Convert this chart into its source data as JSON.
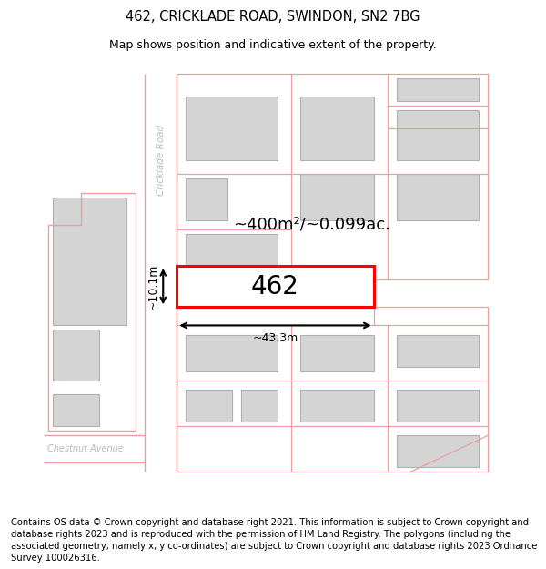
{
  "title": "462, CRICKLADE ROAD, SWINDON, SN2 7BG",
  "subtitle": "Map shows position and indicative extent of the property.",
  "footer": "Contains OS data © Crown copyright and database right 2021. This information is subject to Crown copyright and database rights 2023 and is reproduced with the permission of HM Land Registry. The polygons (including the associated geometry, namely x, y co-ordinates) are subject to Crown copyright and database rights 2023 Ordnance Survey 100026316.",
  "bg_color": "#ffffff",
  "map_bg": "#ffffff",
  "building_color": "#d4d4d4",
  "building_edge": "#b0b0b0",
  "rc": "#e8a0a0",
  "highlight_color": "#ff0000",
  "area_text": "~400m²/~0.099ac.",
  "label_462": "462",
  "dim_width": "~43.3m",
  "dim_height": "~10.1m",
  "road_label": "Cricklade Road",
  "street_label": "Chestnut Avenue",
  "title_fontsize": 10.5,
  "subtitle_fontsize": 9,
  "footer_fontsize": 7.2
}
